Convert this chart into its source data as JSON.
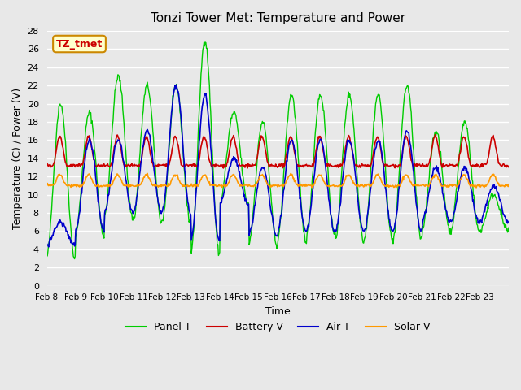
{
  "title": "Tonzi Tower Met: Temperature and Power",
  "xlabel": "Time",
  "ylabel": "Temperature (C) / Power (V)",
  "ylim": [
    0,
    28
  ],
  "yticks": [
    0,
    2,
    4,
    6,
    8,
    10,
    12,
    14,
    16,
    18,
    20,
    22,
    24,
    26,
    28
  ],
  "x_tick_positions": [
    0,
    1,
    2,
    3,
    4,
    5,
    6,
    7,
    8,
    9,
    10,
    11,
    12,
    13,
    14,
    15,
    16
  ],
  "x_labels": [
    "Feb 8",
    "Feb 9",
    "Feb 10",
    "Feb 11",
    "Feb 12",
    "Feb 13",
    "Feb 14",
    "Feb 15",
    "Feb 16",
    "Feb 17",
    "Feb 18",
    "Feb 19",
    "Feb 20",
    "Feb 21",
    "Feb 22",
    "Feb 23",
    ""
  ],
  "colors": {
    "panel_t": "#00CC00",
    "battery_v": "#CC0000",
    "air_t": "#0000CC",
    "solar_v": "#FF9900"
  },
  "plot_bg_color": "#E8E8E8",
  "annotation_text": "TZ_tmet",
  "annotation_bg": "#FFFFCC",
  "annotation_border": "#CC8800",
  "annotation_text_color": "#CC0000",
  "legend_labels": [
    "Panel T",
    "Battery V",
    "Air T",
    "Solar V"
  ],
  "n_days": 16,
  "samples_per_day": 48,
  "panel_peaks": [
    20,
    19,
    23,
    22,
    22,
    27,
    19,
    18,
    21,
    21,
    21,
    21,
    22,
    17,
    18,
    10
  ],
  "panel_troughs": [
    3,
    5.5,
    7.5,
    7,
    7,
    3.5,
    9,
    4.5,
    5,
    5.5,
    5,
    5,
    5,
    6,
    6,
    6
  ],
  "air_peaks": [
    7,
    16,
    16,
    17,
    22,
    21,
    14,
    13,
    16,
    16,
    16,
    16,
    17,
    13,
    13,
    11
  ],
  "air_troughs": [
    4.5,
    6,
    8,
    8,
    8,
    5,
    9,
    5.5,
    6,
    6,
    6,
    6,
    6,
    7,
    7,
    7
  ]
}
